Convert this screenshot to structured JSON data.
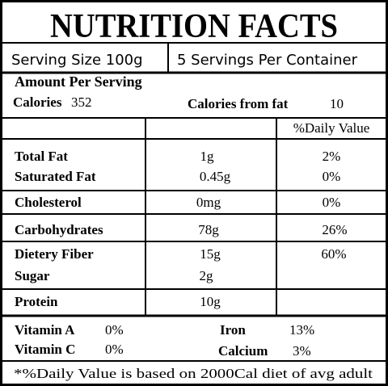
{
  "header": {
    "title": "NUTRITION FACTS"
  },
  "serving": {
    "size": "Serving Size 100g",
    "per_container": "5 Servings Per Container"
  },
  "amount": {
    "heading": "Amount Per Serving",
    "calories_label": "Calories",
    "calories_value": "352",
    "fat_calories_label": "Calories from fat",
    "fat_calories_value": "10"
  },
  "table": {
    "dv_header": "%Daily Value",
    "rows": [
      {
        "name": "Total Fat",
        "amount": "1g",
        "dv": "2%"
      },
      {
        "name": "Saturated Fat",
        "amount": "0.45g",
        "dv": "0%"
      },
      {
        "name": "Cholesterol",
        "amount": "0mg",
        "dv": "0%"
      },
      {
        "name": "Carbohydrates",
        "amount": "78g",
        "dv": "26%"
      },
      {
        "name": "Dietery Fiber",
        "amount": "15g",
        "dv": "60%"
      },
      {
        "name": "Sugar",
        "amount": "2g"
      },
      {
        "name": "Protein",
        "amount": "10g"
      }
    ]
  },
  "vitamins": [
    {
      "name": "Vitamin A",
      "value": "0%"
    },
    {
      "name": "Iron",
      "value": "13%"
    },
    {
      "name": "Vitamin C",
      "value": "0%"
    },
    {
      "name": "Calcium",
      "value": "3%"
    }
  ],
  "footnote": "*%Daily Value is based on 2000Cal diet of avg adult"
}
